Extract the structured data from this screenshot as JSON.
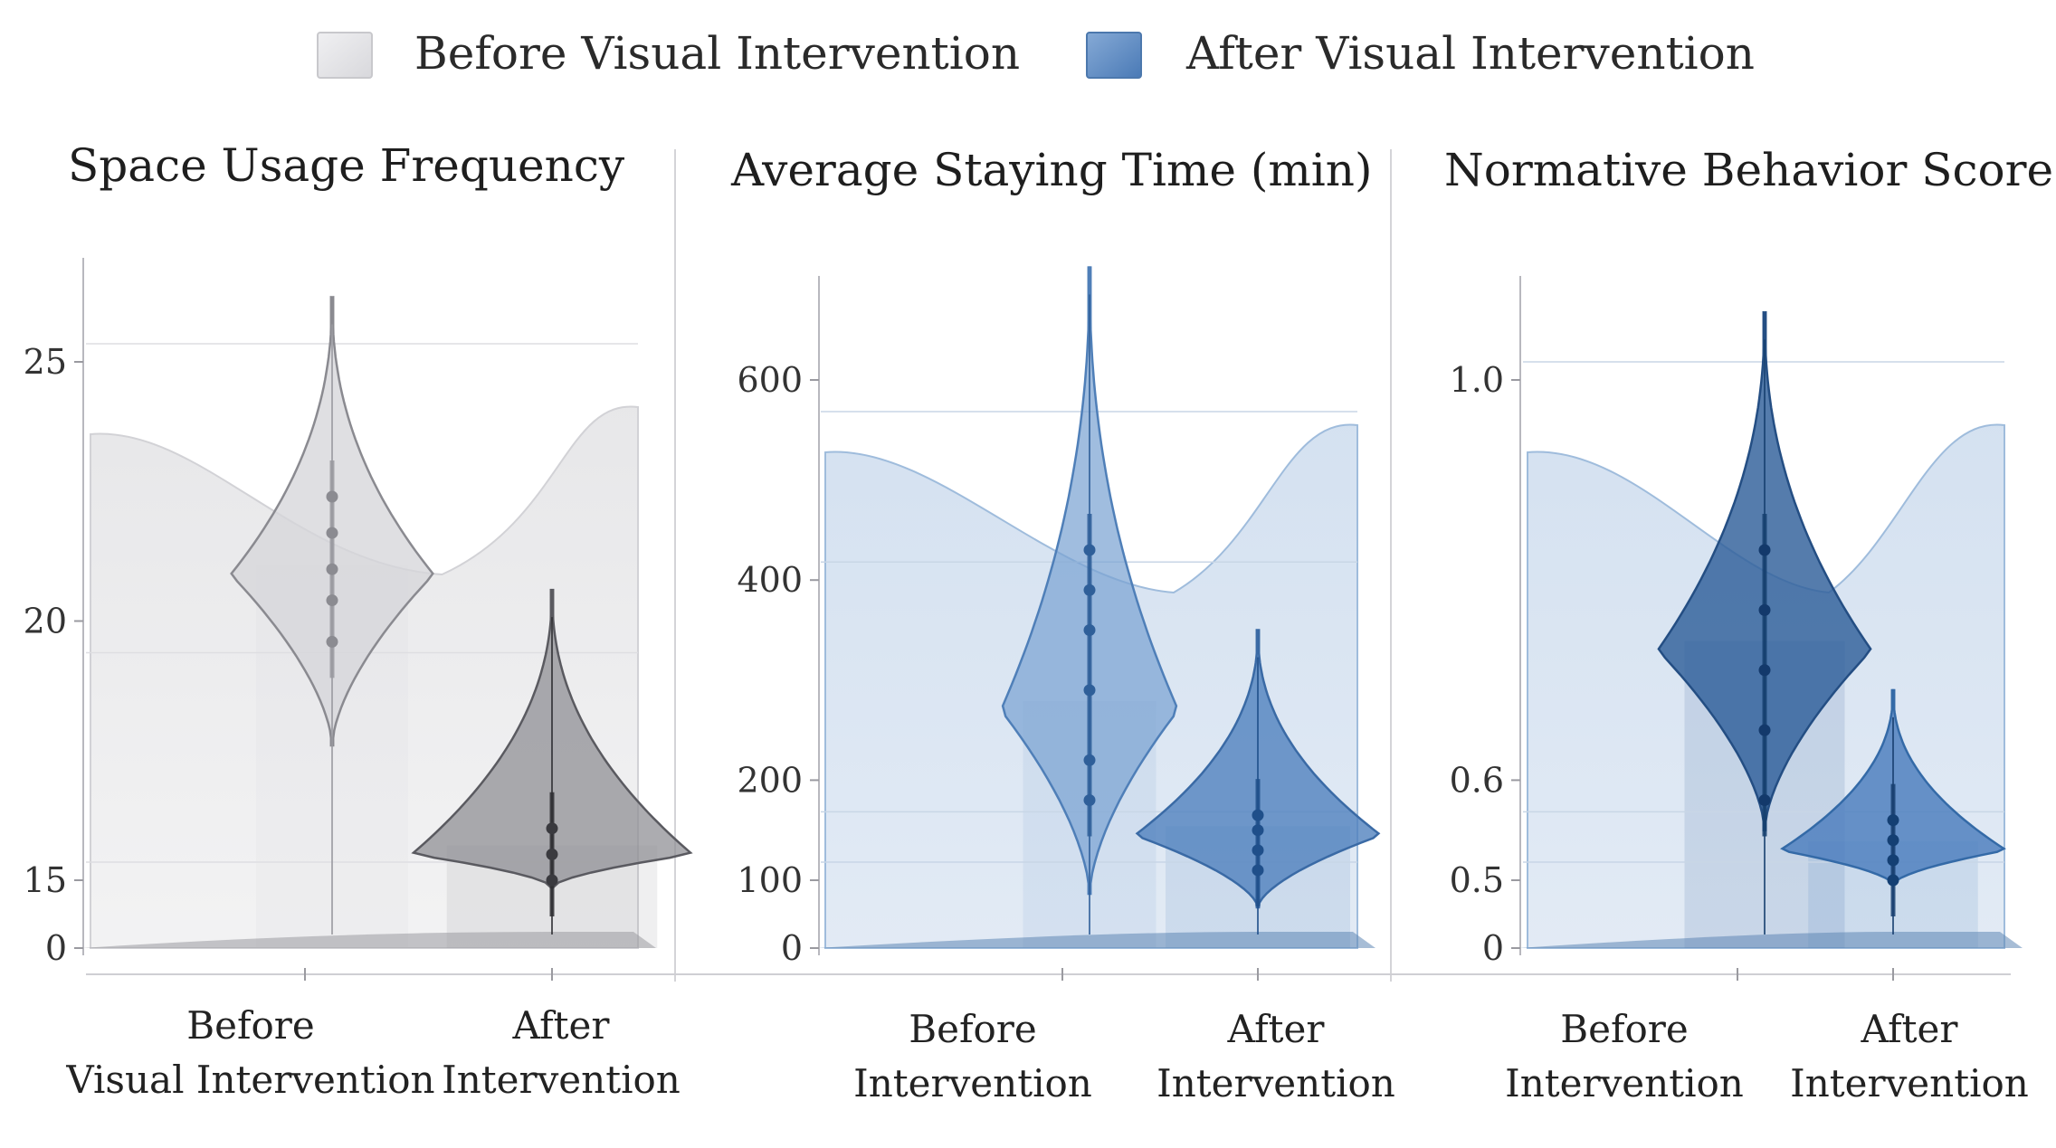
{
  "legend": {
    "position": "top",
    "items": [
      {
        "label": "Before Visual Intervention",
        "color": "#e4e4e6"
      },
      {
        "label": "After Visual Intervention",
        "color": "#5f8fc8"
      }
    ]
  },
  "chart_data": [
    {
      "type": "violin",
      "title": "Space Usage Frequency",
      "theme": "gray",
      "y_ticks": [
        {
          "label": "0",
          "value": 0
        },
        {
          "label": "15",
          "value": 15
        },
        {
          "label": "20",
          "value": 20
        },
        {
          "label": "25",
          "value": 25
        }
      ],
      "categories": [
        {
          "lines": [
            "Before",
            "Visual Intervention"
          ]
        },
        {
          "lines": [
            "After",
            "Intervention"
          ]
        }
      ],
      "series": [
        {
          "name": "Before Visual Intervention",
          "min": 17.6,
          "max": 27.3,
          "mode": 20.9,
          "points": [
            22.4,
            21.7,
            21.0,
            20.4,
            19.6
          ]
        },
        {
          "name": "After Visual Intervention",
          "min": 13.4,
          "max": 20.6,
          "mode": 15.5,
          "points": [
            16.0,
            15.5,
            15.0
          ]
        }
      ]
    },
    {
      "type": "violin",
      "title": "Average Staying Time (min)",
      "theme": "blue",
      "y_ticks": [
        {
          "label": "0",
          "value": 0
        },
        {
          "label": "100",
          "value": 100
        },
        {
          "label": "200",
          "value": 200
        },
        {
          "label": "400",
          "value": 400
        },
        {
          "label": "600",
          "value": 600
        }
      ],
      "categories": [
        {
          "lines": [
            "Before",
            "Intervention"
          ]
        },
        {
          "lines": [
            "After",
            "Intervention"
          ]
        }
      ],
      "series": [
        {
          "name": "Before Visual Intervention",
          "min": 80,
          "max": 800,
          "mode": 270,
          "points": [
            430,
            390,
            350,
            290,
            220,
            180
          ]
        },
        {
          "name": "After Visual Intervention",
          "min": 60,
          "max": 350,
          "mode": 145,
          "points": [
            165,
            150,
            130,
            110
          ]
        }
      ]
    },
    {
      "type": "violin",
      "title": "Normative Behavior Score",
      "theme": "darkblue",
      "y_ticks": [
        {
          "label": "0",
          "value": 0
        },
        {
          "label": "0.5",
          "value": 0.5
        },
        {
          "label": "0.6",
          "value": 0.6
        },
        {
          "label": "1.0",
          "value": 1.0
        }
      ],
      "categories": [
        {
          "lines": [
            "Before",
            "Intervention"
          ]
        },
        {
          "lines": [
            "After",
            "Intervention"
          ]
        }
      ],
      "series": [
        {
          "name": "Before Visual Intervention",
          "min": 0.55,
          "max": 1.12,
          "mode": 0.73,
          "points": [
            0.83,
            0.77,
            0.71,
            0.65,
            0.58
          ]
        },
        {
          "name": "After Visual Intervention",
          "min": 0.47,
          "max": 0.69,
          "mode": 0.53,
          "points": [
            0.56,
            0.54,
            0.52,
            0.5
          ]
        }
      ]
    }
  ]
}
